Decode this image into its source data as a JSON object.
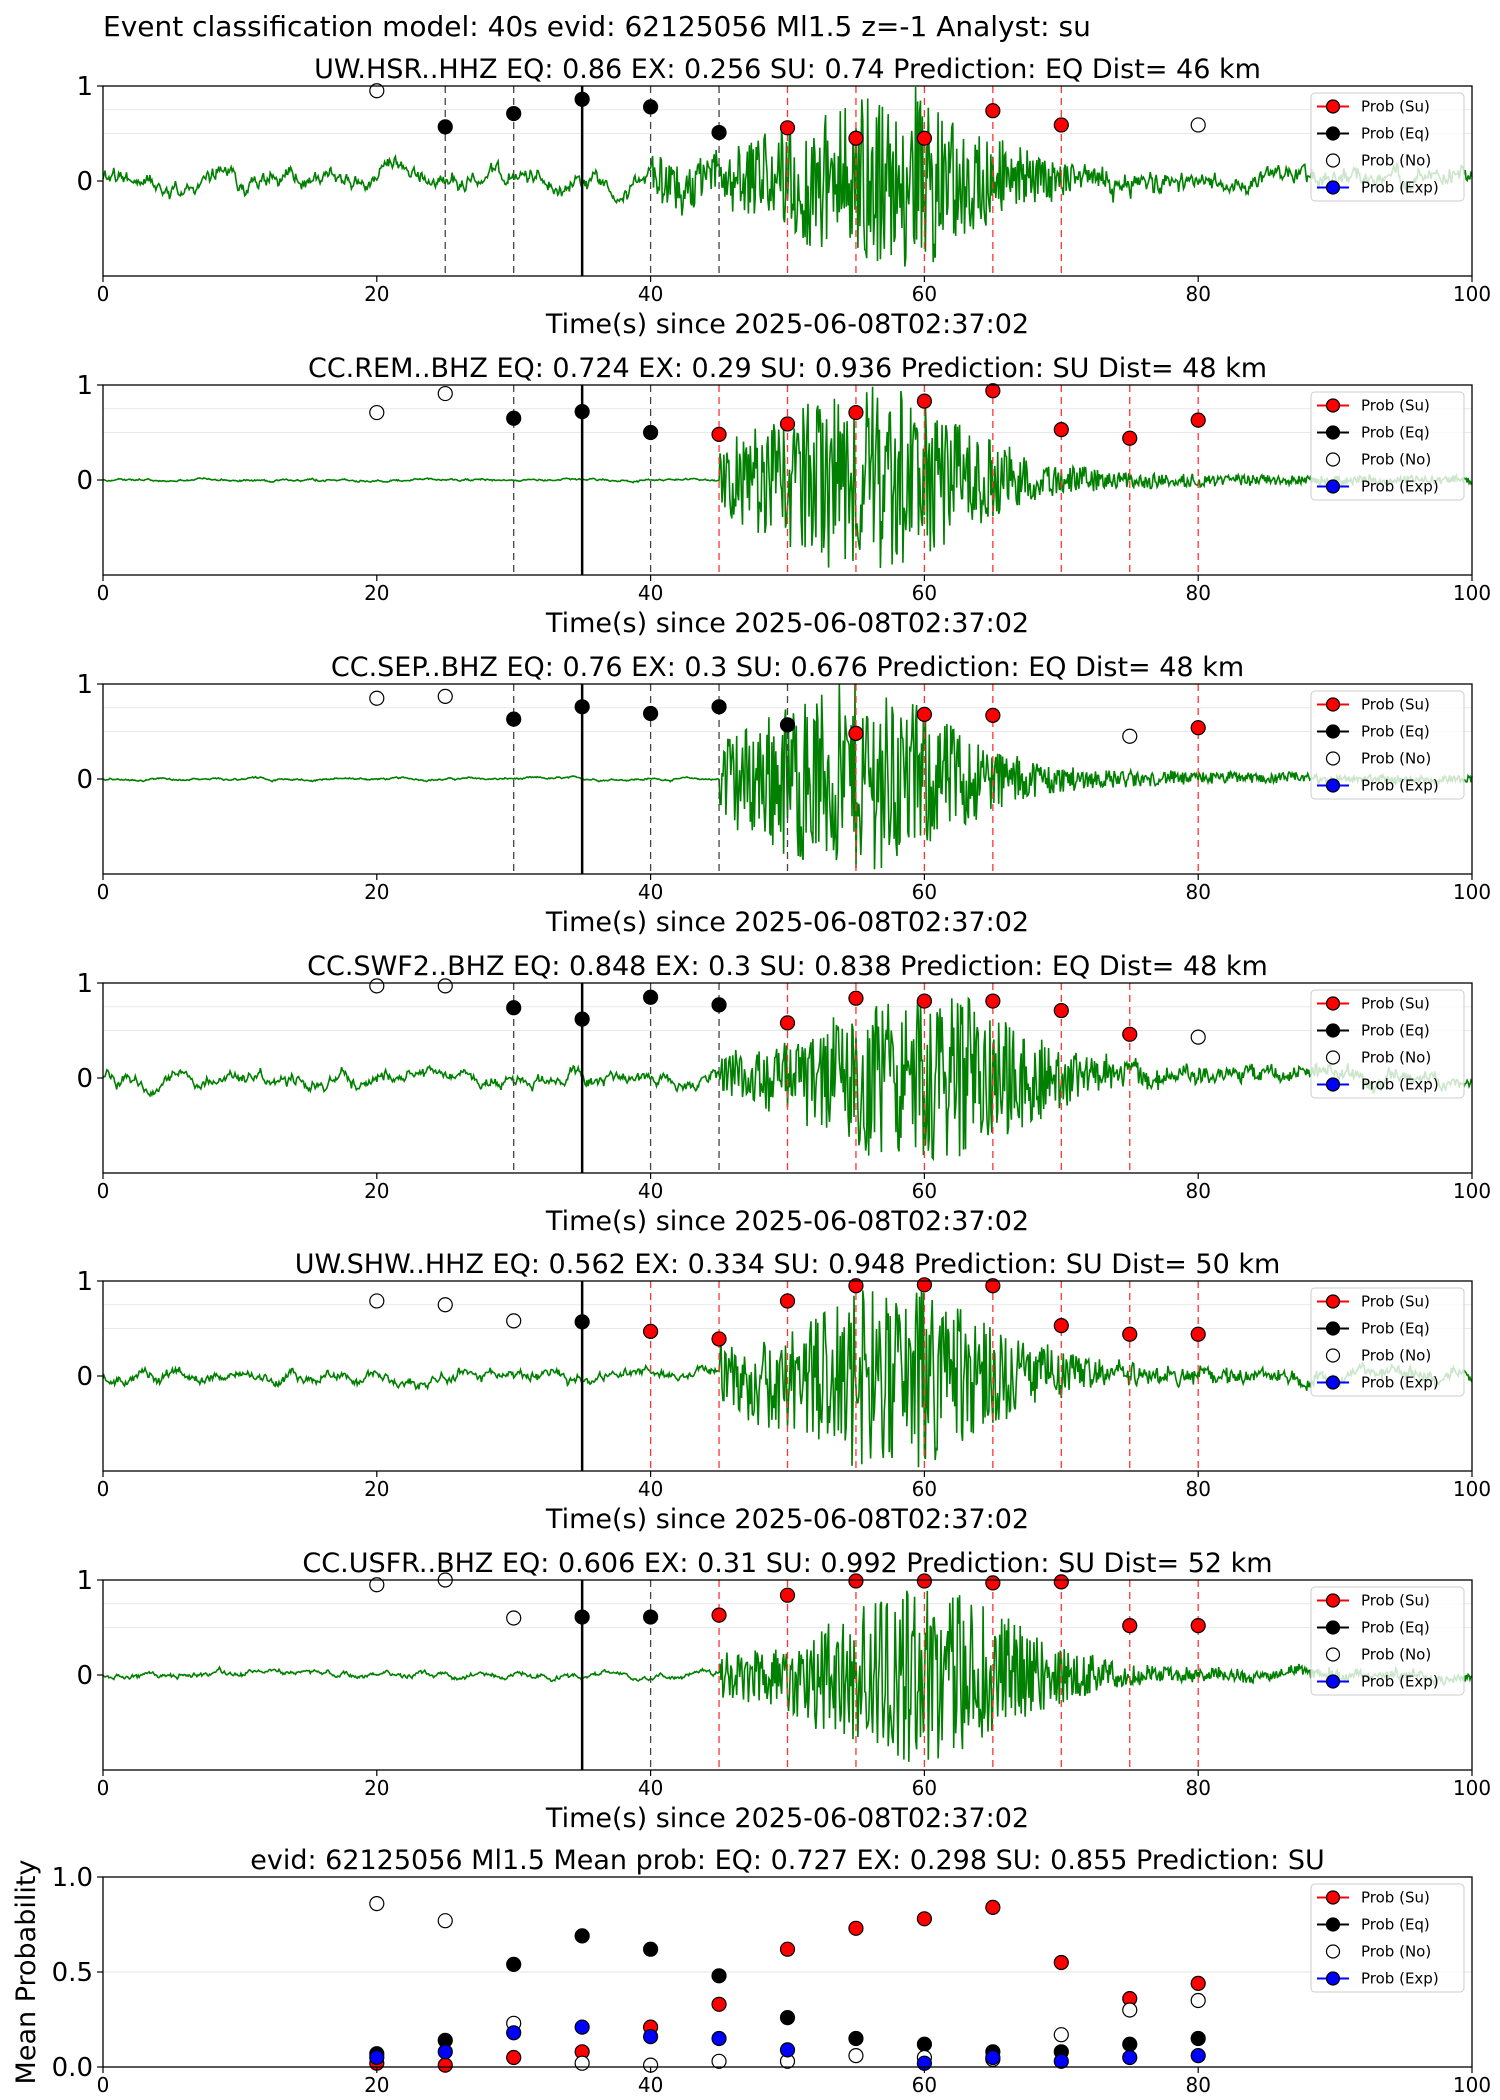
{
  "suptitle": "Event classification model: 40s evid: 62125056 Ml1.5 z=-1 Analyst: su",
  "xlabel": "Time(s) since 2025-06-08T02:37:02",
  "legend": [
    "Prob (Su)",
    "Prob (Eq)",
    "Prob (No)",
    "Prob (Exp)"
  ],
  "colors": {
    "su": "#ff0000",
    "eq": "#000000",
    "no": "#ffffff",
    "exp": "#0000ff",
    "wave": "#008000"
  },
  "chart_data": [
    {
      "type": "scatter",
      "title": "UW.HSR..HHZ   EQ: 0.86  EX: 0.256  SU: 0.74   Prediction: EQ    Dist= 46 km",
      "xlim": [
        0,
        100
      ],
      "ylim": [
        -1,
        1
      ],
      "xticks": [
        0,
        20,
        40,
        60,
        80,
        100
      ],
      "yticks": [
        0,
        1
      ],
      "legend_position": "top-right",
      "waveform": {
        "onset": 40,
        "peak": 57,
        "noise": 0.16,
        "amp": 0.8
      },
      "markers": [
        {
          "x": 25,
          "y": 0.57,
          "cls": "eq"
        },
        {
          "x": 30,
          "y": 0.71,
          "cls": "eq"
        },
        {
          "x": 35,
          "y": 0.86,
          "cls": "eq"
        },
        {
          "x": 40,
          "y": 0.78,
          "cls": "eq"
        },
        {
          "x": 45,
          "y": 0.51,
          "cls": "eq"
        },
        {
          "x": 50,
          "y": 0.56,
          "cls": "su"
        },
        {
          "x": 55,
          "y": 0.45,
          "cls": "su"
        },
        {
          "x": 60,
          "y": 0.45,
          "cls": "su"
        },
        {
          "x": 65,
          "y": 0.74,
          "cls": "su"
        },
        {
          "x": 70,
          "y": 0.59,
          "cls": "su"
        },
        {
          "x": 20,
          "y": 0.95,
          "cls": "no"
        },
        {
          "x": 80,
          "y": 0.59,
          "cls": "no"
        }
      ]
    },
    {
      "type": "scatter",
      "title": "CC.REM..BHZ   EQ: 0.724  EX: 0.29  SU: 0.936   Prediction: SU    Dist= 48 km",
      "xlim": [
        0,
        100
      ],
      "ylim": [
        -1,
        1
      ],
      "xticks": [
        0,
        20,
        40,
        60,
        80,
        100
      ],
      "yticks": [
        0,
        1
      ],
      "legend_position": "top-right",
      "waveform": {
        "onset": 45,
        "peak": 56,
        "noise": 0.02,
        "amp": 0.85
      },
      "markers": [
        {
          "x": 30,
          "y": 0.65,
          "cls": "eq"
        },
        {
          "x": 35,
          "y": 0.72,
          "cls": "eq"
        },
        {
          "x": 40,
          "y": 0.5,
          "cls": "eq"
        },
        {
          "x": 45,
          "y": 0.48,
          "cls": "su"
        },
        {
          "x": 50,
          "y": 0.59,
          "cls": "su"
        },
        {
          "x": 55,
          "y": 0.71,
          "cls": "su"
        },
        {
          "x": 60,
          "y": 0.83,
          "cls": "su"
        },
        {
          "x": 65,
          "y": 0.94,
          "cls": "su"
        },
        {
          "x": 70,
          "y": 0.53,
          "cls": "su"
        },
        {
          "x": 75,
          "y": 0.44,
          "cls": "su"
        },
        {
          "x": 80,
          "y": 0.63,
          "cls": "su"
        },
        {
          "x": 20,
          "y": 0.71,
          "cls": "no"
        },
        {
          "x": 25,
          "y": 0.91,
          "cls": "no"
        }
      ]
    },
    {
      "type": "scatter",
      "title": "CC.SEP..BHZ   EQ: 0.76  EX: 0.3  SU: 0.676   Prediction: EQ    Dist= 48 km",
      "xlim": [
        0,
        100
      ],
      "ylim": [
        -1,
        1
      ],
      "xticks": [
        0,
        20,
        40,
        60,
        80,
        100
      ],
      "yticks": [
        0,
        1
      ],
      "legend_position": "top-right",
      "waveform": {
        "onset": 45,
        "peak": 55,
        "noise": 0.02,
        "amp": 0.85
      },
      "markers": [
        {
          "x": 30,
          "y": 0.63,
          "cls": "eq"
        },
        {
          "x": 35,
          "y": 0.76,
          "cls": "eq"
        },
        {
          "x": 40,
          "y": 0.69,
          "cls": "eq"
        },
        {
          "x": 45,
          "y": 0.76,
          "cls": "eq"
        },
        {
          "x": 50,
          "y": 0.57,
          "cls": "eq"
        },
        {
          "x": 55,
          "y": 0.48,
          "cls": "su"
        },
        {
          "x": 60,
          "y": 0.68,
          "cls": "su"
        },
        {
          "x": 65,
          "y": 0.67,
          "cls": "su"
        },
        {
          "x": 80,
          "y": 0.54,
          "cls": "su"
        },
        {
          "x": 20,
          "y": 0.85,
          "cls": "no"
        },
        {
          "x": 25,
          "y": 0.87,
          "cls": "no"
        },
        {
          "x": 75,
          "y": 0.45,
          "cls": "no"
        }
      ]
    },
    {
      "type": "scatter",
      "title": "CC.SWF2..BHZ   EQ: 0.848  EX: 0.3  SU: 0.838   Prediction: EQ    Dist= 48 km",
      "xlim": [
        0,
        100
      ],
      "ylim": [
        -1,
        1
      ],
      "xticks": [
        0,
        20,
        40,
        60,
        80,
        100
      ],
      "yticks": [
        0,
        1
      ],
      "legend_position": "top-right",
      "waveform": {
        "onset": 45,
        "peak": 60,
        "noise": 0.12,
        "amp": 0.8
      },
      "markers": [
        {
          "x": 30,
          "y": 0.74,
          "cls": "eq"
        },
        {
          "x": 35,
          "y": 0.62,
          "cls": "eq"
        },
        {
          "x": 40,
          "y": 0.85,
          "cls": "eq"
        },
        {
          "x": 45,
          "y": 0.77,
          "cls": "eq"
        },
        {
          "x": 50,
          "y": 0.58,
          "cls": "su"
        },
        {
          "x": 55,
          "y": 0.84,
          "cls": "su"
        },
        {
          "x": 60,
          "y": 0.81,
          "cls": "su"
        },
        {
          "x": 65,
          "y": 0.81,
          "cls": "su"
        },
        {
          "x": 70,
          "y": 0.71,
          "cls": "su"
        },
        {
          "x": 75,
          "y": 0.46,
          "cls": "su"
        },
        {
          "x": 20,
          "y": 0.97,
          "cls": "no"
        },
        {
          "x": 25,
          "y": 0.97,
          "cls": "no"
        },
        {
          "x": 80,
          "y": 0.43,
          "cls": "no"
        }
      ]
    },
    {
      "type": "scatter",
      "title": "UW.SHW..HHZ   EQ: 0.562  EX: 0.334  SU: 0.948   Prediction: SU    Dist= 50 km",
      "xlim": [
        0,
        100
      ],
      "ylim": [
        -1,
        1
      ],
      "xticks": [
        0,
        20,
        40,
        60,
        80,
        100
      ],
      "yticks": [
        0,
        1
      ],
      "legend_position": "top-right",
      "waveform": {
        "onset": 45,
        "peak": 58,
        "noise": 0.1,
        "amp": 0.85
      },
      "markers": [
        {
          "x": 35,
          "y": 0.57,
          "cls": "eq"
        },
        {
          "x": 40,
          "y": 0.47,
          "cls": "su"
        },
        {
          "x": 45,
          "y": 0.39,
          "cls": "su"
        },
        {
          "x": 50,
          "y": 0.79,
          "cls": "su"
        },
        {
          "x": 55,
          "y": 0.95,
          "cls": "su"
        },
        {
          "x": 60,
          "y": 0.96,
          "cls": "su"
        },
        {
          "x": 65,
          "y": 0.95,
          "cls": "su"
        },
        {
          "x": 70,
          "y": 0.53,
          "cls": "su"
        },
        {
          "x": 75,
          "y": 0.44,
          "cls": "su"
        },
        {
          "x": 80,
          "y": 0.44,
          "cls": "su"
        },
        {
          "x": 20,
          "y": 0.79,
          "cls": "no"
        },
        {
          "x": 25,
          "y": 0.75,
          "cls": "no"
        },
        {
          "x": 30,
          "y": 0.58,
          "cls": "no"
        }
      ]
    },
    {
      "type": "scatter",
      "title": "CC.USFR..BHZ   EQ: 0.606  EX: 0.31  SU: 0.992   Prediction: SU    Dist= 52 km",
      "xlim": [
        0,
        100
      ],
      "ylim": [
        -1,
        1
      ],
      "xticks": [
        0,
        20,
        40,
        60,
        80,
        100
      ],
      "yticks": [
        0,
        1
      ],
      "legend_position": "top-right",
      "waveform": {
        "onset": 45,
        "peak": 60,
        "noise": 0.05,
        "amp": 0.8
      },
      "markers": [
        {
          "x": 35,
          "y": 0.61,
          "cls": "eq"
        },
        {
          "x": 40,
          "y": 0.61,
          "cls": "eq"
        },
        {
          "x": 45,
          "y": 0.63,
          "cls": "su"
        },
        {
          "x": 50,
          "y": 0.84,
          "cls": "su"
        },
        {
          "x": 55,
          "y": 0.99,
          "cls": "su"
        },
        {
          "x": 60,
          "y": 0.99,
          "cls": "su"
        },
        {
          "x": 65,
          "y": 0.97,
          "cls": "su"
        },
        {
          "x": 70,
          "y": 0.98,
          "cls": "su"
        },
        {
          "x": 75,
          "y": 0.52,
          "cls": "su"
        },
        {
          "x": 80,
          "y": 0.52,
          "cls": "su"
        },
        {
          "x": 20,
          "y": 0.95,
          "cls": "no"
        },
        {
          "x": 25,
          "y": 1.0,
          "cls": "no"
        },
        {
          "x": 30,
          "y": 0.6,
          "cls": "no"
        }
      ]
    },
    {
      "type": "scatter",
      "title": "evid: 62125056  Ml1.5   Mean prob:   EQ: 0.727  EX: 0.298  SU: 0.855   Prediction: SU",
      "ylabel": "Mean Probability",
      "xlim": [
        0,
        100
      ],
      "ylim": [
        0,
        1
      ],
      "xticks": [
        0,
        20,
        40,
        60,
        80,
        100
      ],
      "yticks": [
        0.0,
        0.5,
        1.0
      ],
      "grid": true,
      "legend_position": "top-right",
      "x": [
        20,
        25,
        30,
        35,
        40,
        45,
        50,
        55,
        60,
        65,
        70,
        75,
        80
      ],
      "series": [
        {
          "name": "Prob (Su)",
          "cls": "su",
          "values": [
            0.02,
            0.01,
            0.05,
            0.08,
            0.21,
            0.33,
            0.62,
            0.73,
            0.78,
            0.84,
            0.55,
            0.36,
            0.44
          ]
        },
        {
          "name": "Prob (Eq)",
          "cls": "eq",
          "values": [
            0.07,
            0.14,
            0.54,
            0.69,
            0.62,
            0.48,
            0.26,
            0.15,
            0.12,
            0.08,
            0.08,
            0.12,
            0.15
          ]
        },
        {
          "name": "Prob (No)",
          "cls": "no",
          "values": [
            0.86,
            0.77,
            0.23,
            0.02,
            0.01,
            0.03,
            0.03,
            0.06,
            0.05,
            0.04,
            0.17,
            0.3,
            0.35
          ]
        },
        {
          "name": "Prob (Exp)",
          "cls": "exp",
          "values": [
            0.05,
            0.08,
            0.18,
            0.21,
            0.16,
            0.15,
            0.09,
            null,
            0.02,
            0.05,
            0.03,
            0.05,
            0.06
          ]
        }
      ]
    }
  ]
}
